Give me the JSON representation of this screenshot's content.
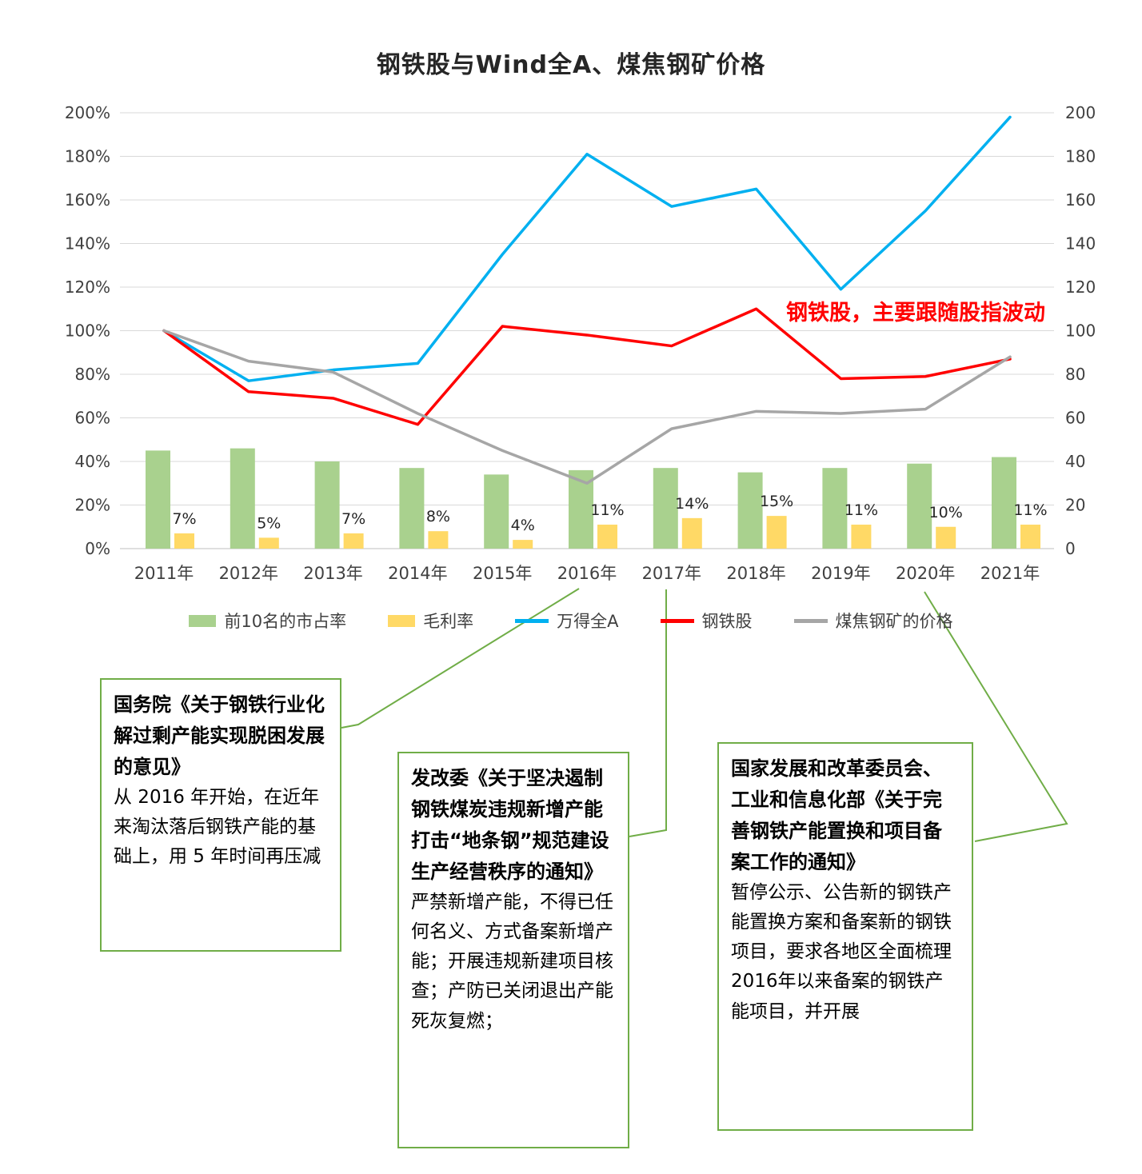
{
  "title": "钢铁股与Wind全A、煤焦钢矿价格",
  "annotation": "钢铁股，主要跟随股指波动",
  "annotation_color": "#FF0000",
  "legend": [
    {
      "label": "前10名的市占率",
      "type": "bar",
      "color": "#A9D18E"
    },
    {
      "label": "毛利率",
      "type": "bar",
      "color": "#FFD966"
    },
    {
      "label": "万得全A",
      "type": "line",
      "color": "#00B0F0"
    },
    {
      "label": "钢铁股",
      "type": "line",
      "color": "#FF0000"
    },
    {
      "label": "煤焦钢矿的价格",
      "type": "line",
      "color": "#A6A6A6"
    }
  ],
  "chart_data": {
    "type": "combo-bar-line",
    "title": "钢铁股与Wind全A、煤焦钢矿价格",
    "categories": [
      "2011年",
      "2012年",
      "2013年",
      "2014年",
      "2015年",
      "2016年",
      "2017年",
      "2018年",
      "2019年",
      "2020年",
      "2021年"
    ],
    "y_left": {
      "min": 0,
      "max": 200,
      "step": 20,
      "suffix": "%"
    },
    "y_right": {
      "min": 0,
      "max": 200,
      "step": 20,
      "suffix": ""
    },
    "grid": true,
    "legend_position": "bottom",
    "series": [
      {
        "name": "前10名的市占率",
        "type": "bar",
        "color": "#A9D18E",
        "values": [
          45,
          46,
          40,
          37,
          34,
          36,
          37,
          35,
          37,
          39,
          42
        ]
      },
      {
        "name": "毛利率",
        "type": "bar",
        "color": "#FFD966",
        "values": [
          7,
          5,
          7,
          8,
          4,
          11,
          14,
          15,
          11,
          10,
          11
        ],
        "labels": [
          "7%",
          "5%",
          "7%",
          "8%",
          "4%",
          "11%",
          "14%",
          "15%",
          "11%",
          "10%",
          "11%"
        ]
      },
      {
        "name": "万得全A",
        "type": "line",
        "color": "#00B0F0",
        "values": [
          100,
          77,
          82,
          85,
          135,
          181,
          157,
          165,
          119,
          155,
          198
        ]
      },
      {
        "name": "钢铁股",
        "type": "line",
        "color": "#FF0000",
        "values": [
          100,
          72,
          69,
          57,
          102,
          98,
          93,
          110,
          78,
          79,
          87
        ]
      },
      {
        "name": "煤焦钢矿的价格",
        "type": "line",
        "color": "#A6A6A6",
        "values": [
          100,
          86,
          81,
          62,
          45,
          30,
          55,
          63,
          62,
          64,
          88
        ]
      }
    ]
  },
  "callouts": [
    {
      "title": "国务院《关于钢铁行业化解过剩产能实现脱困发展的意见》",
      "body": "从 2016 年开始，在近年来淘汰落后钢铁产能的基础上，用 5 年时间再压减"
    },
    {
      "title": "发改委《关于坚决遏制钢铁煤炭违规新增产能打击“地条钢”规范建设生产经营秩序的通知》",
      "body": "严禁新增产能，不得已任何名义、方式备案新增产能；开展违规新建项目核查；产防已关闭退出产能死灰复燃；"
    },
    {
      "title": "国家发展和改革委员会、工业和信息化部《关于完善钢铁产能置换和项目备案工作的通知》",
      "body": "暂停公示、公告新的钢铁产能置换方案和备案新的钢铁项目，要求各地区全面梳理2016年以来备案的钢铁产能项目，并开展"
    }
  ],
  "connector_color": "#70AD47"
}
